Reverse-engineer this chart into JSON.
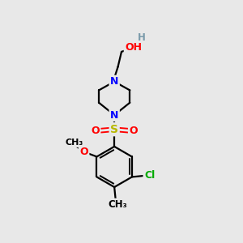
{
  "bg_color": "#e8e8e8",
  "atom_colors": {
    "C": "#000000",
    "N": "#0000ff",
    "O": "#ff0000",
    "S": "#b8b800",
    "Cl": "#00aa00",
    "H": "#7a9aaa"
  },
  "bond_color": "#000000",
  "bond_width": 1.6,
  "fig_width": 3.0,
  "fig_height": 3.0,
  "dpi": 100,
  "xlim": [
    0,
    10
  ],
  "ylim": [
    0,
    10
  ]
}
